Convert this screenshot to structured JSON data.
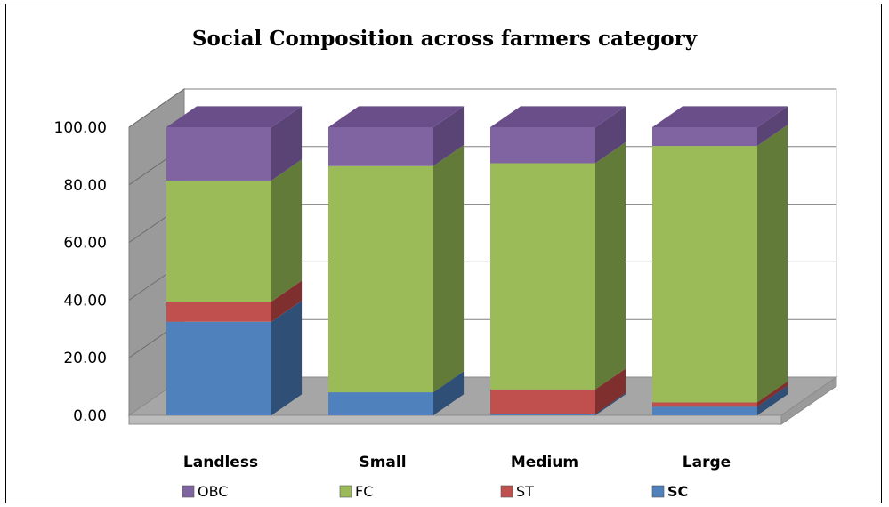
{
  "chart_data": {
    "type": "bar",
    "stacked": true,
    "three_d": true,
    "title": "Social Composition across farmers category",
    "xlabel": "",
    "ylabel": "",
    "categories": [
      "Landless",
      "Small",
      "Medium",
      "Large"
    ],
    "ylim": [
      0,
      100
    ],
    "yticks": [
      "0.00",
      "20.00",
      "40.00",
      "60.00",
      "80.00",
      "100.00"
    ],
    "grid": true,
    "legend_position": "bottom",
    "series": [
      {
        "name": "SC",
        "values": [
          32.5,
          8.0,
          0.5,
          3.0
        ],
        "color": "#4f81bd",
        "side": "#2f4f77",
        "top": "#6a98cf"
      },
      {
        "name": "ST",
        "values": [
          7.0,
          0.0,
          8.5,
          1.5
        ],
        "color": "#c0504d",
        "side": "#7f2f2d",
        "top": "#d06b68"
      },
      {
        "name": "FC",
        "values": [
          42.0,
          78.5,
          78.5,
          89.0
        ],
        "color": "#9bbb59",
        "side": "#637b38",
        "top": "#afcb74"
      },
      {
        "name": "OBC",
        "values": [
          18.5,
          13.5,
          12.5,
          6.5
        ],
        "color": "#8064a2",
        "side": "#5a4476",
        "top": "#6a4e8a"
      }
    ],
    "legend_order": [
      "OBC",
      "FC",
      "ST",
      "SC"
    ],
    "legend_bold": [
      "SC"
    ]
  }
}
